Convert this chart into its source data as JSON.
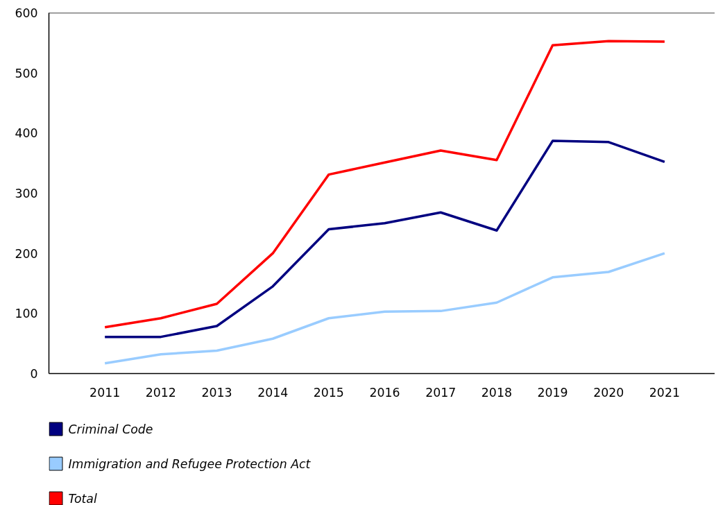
{
  "chart_data": {
    "type": "line",
    "categories": [
      "2011",
      "2012",
      "2013",
      "2014",
      "2015",
      "2016",
      "2017",
      "2018",
      "2019",
      "2020",
      "2021"
    ],
    "series": [
      {
        "name": "Criminal Code",
        "color": "#000080",
        "values": [
          61,
          61,
          79,
          145,
          240,
          250,
          268,
          238,
          387,
          385,
          352
        ]
      },
      {
        "name": "Immigration and Refugee Protection Act",
        "color": "#99ccff",
        "values": [
          17,
          32,
          38,
          58,
          92,
          103,
          104,
          118,
          160,
          169,
          200
        ]
      },
      {
        "name": "Total",
        "color": "#ff0000",
        "values": [
          77,
          92,
          116,
          200,
          331,
          351,
          371,
          355,
          546,
          553,
          552
        ]
      }
    ],
    "ylim": [
      0,
      600
    ],
    "yticks": [
      0,
      100,
      200,
      300,
      400,
      500,
      600
    ],
    "grid": false,
    "legend": "bottom",
    "marker": "none",
    "line_style": "solid"
  }
}
